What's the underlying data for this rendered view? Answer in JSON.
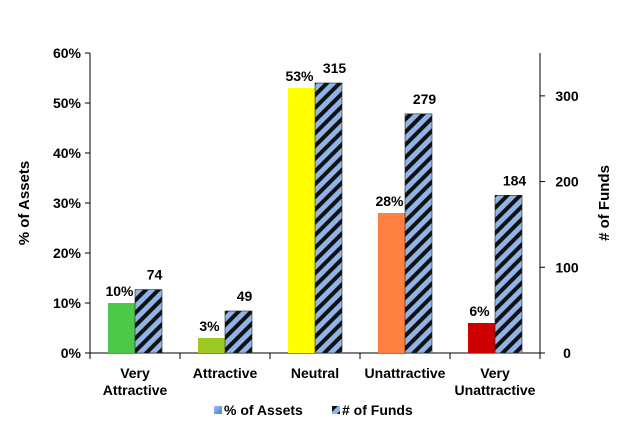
{
  "chart_data": {
    "type": "bar",
    "categories": [
      [
        "Very",
        "Attractive"
      ],
      [
        "Attractive"
      ],
      [
        "Neutral"
      ],
      [
        "Unattractive"
      ],
      [
        "Very",
        "Unattractive"
      ]
    ],
    "series": [
      {
        "name": "% of Assets",
        "axis": "left",
        "values": [
          10,
          3,
          53,
          28,
          6
        ],
        "labels": [
          "10%",
          "3%",
          "53%",
          "28%",
          "6%"
        ],
        "colors": [
          "#4dc94a",
          "#9dc925",
          "#ffff00",
          "#ff8040",
          "#cc0000"
        ]
      },
      {
        "name": "# of Funds",
        "axis": "right",
        "values": [
          74,
          49,
          315,
          279,
          184
        ],
        "labels": [
          "74",
          "49",
          "315",
          "279",
          "184"
        ],
        "pattern": "diagonal-stripes",
        "colors": [
          "#8fb4e8",
          "#000000"
        ]
      }
    ],
    "ylabel": "% of Assets",
    "y2label": "# of Funds",
    "ylim": [
      0,
      60
    ],
    "y2lim": [
      0,
      350
    ],
    "yticks": [
      "0%",
      "10%",
      "20%",
      "30%",
      "40%",
      "50%",
      "60%"
    ],
    "y2ticks": [
      "0",
      "100",
      "200",
      "300"
    ],
    "y2tick_values": [
      0,
      100,
      200,
      300
    ],
    "legend": "bottom-center",
    "grid": false
  }
}
